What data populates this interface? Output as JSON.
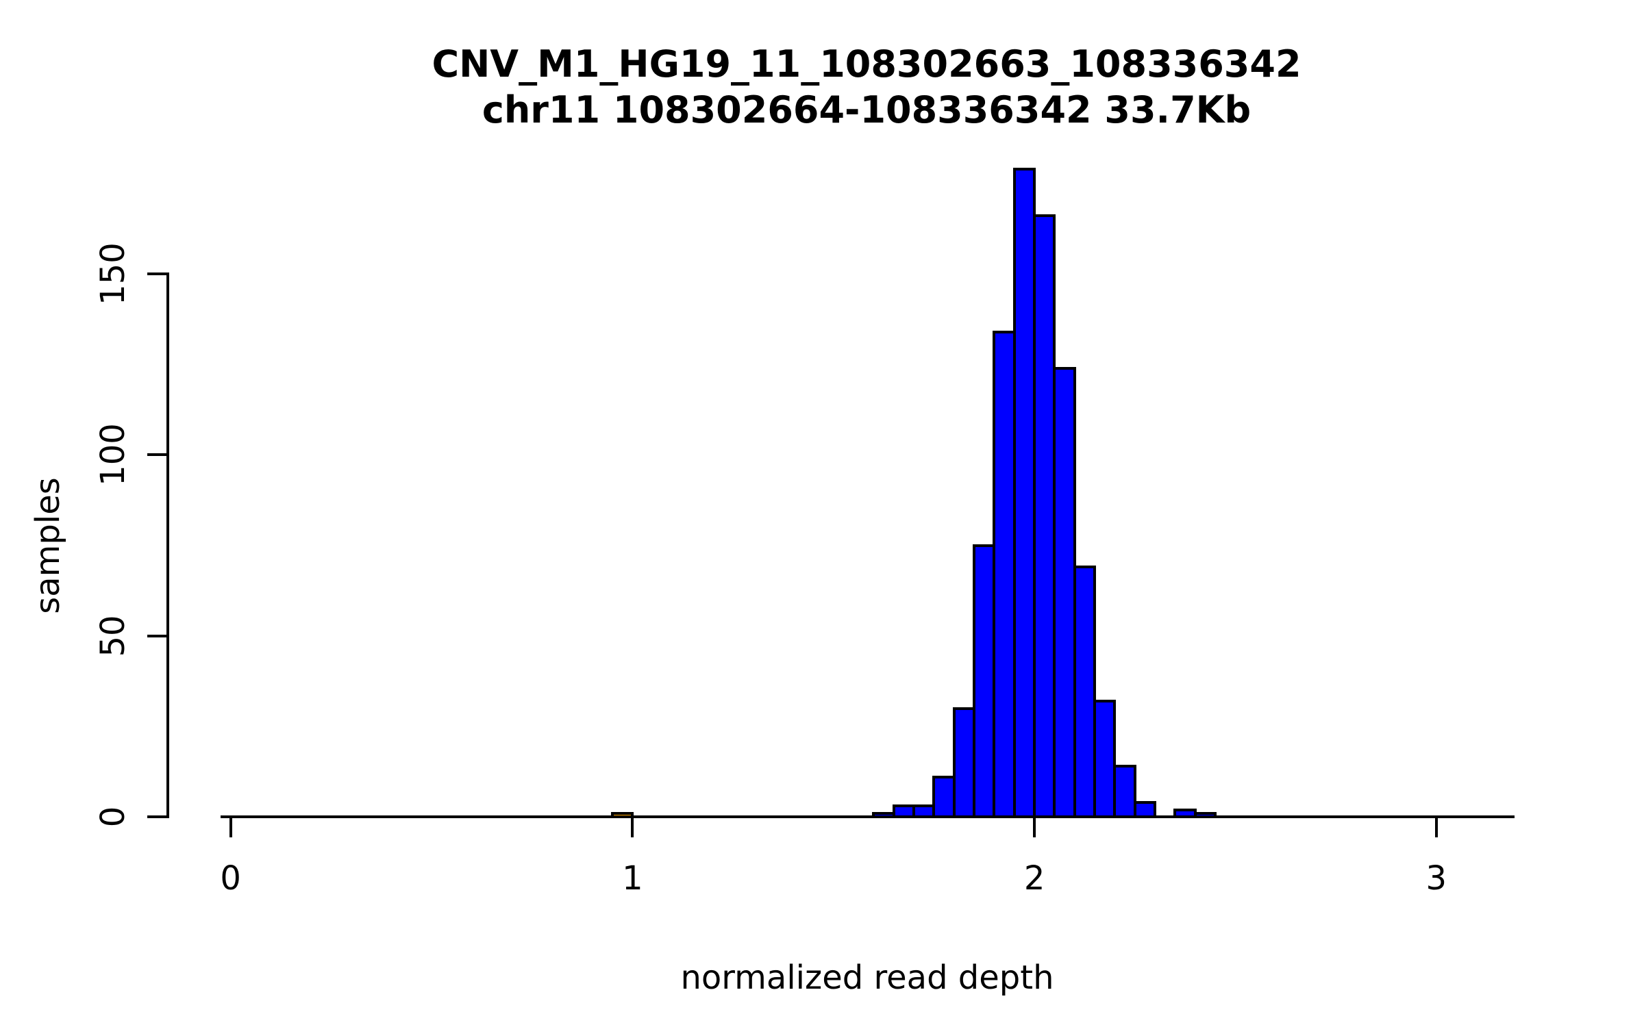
{
  "figure": {
    "background": "#ffffff",
    "text_color": "#000000"
  },
  "chart_data": {
    "type": "bar",
    "subtype": "histogram",
    "title": "CNV_M1_HG19_11_108302663_108336342",
    "subtitle": "chr11 108302664-108336342 33.7Kb",
    "xlabel": "normalized read depth",
    "ylabel": "samples",
    "grid": false,
    "legend": null,
    "bar_fill": "#0000FF",
    "bar_border": "#000000",
    "outlier_fill": "#FFA500",
    "bin_width": 0.05,
    "xlim": [
      -0.025,
      3.194
    ],
    "ylim": [
      0,
      180
    ],
    "x_ticks": [
      {
        "value": 0,
        "label": "0"
      },
      {
        "value": 1,
        "label": "1"
      },
      {
        "value": 2,
        "label": "2"
      },
      {
        "value": 3,
        "label": "3"
      }
    ],
    "y_ticks": [
      {
        "value": 0,
        "label": "0"
      },
      {
        "value": 50,
        "label": "50"
      },
      {
        "value": 100,
        "label": "100"
      },
      {
        "value": 150,
        "label": "150"
      }
    ],
    "bars": [
      {
        "bin_start": 0.95,
        "count": 1,
        "fill": "#FFA500"
      },
      {
        "bin_start": 1.6,
        "count": 1
      },
      {
        "bin_start": 1.65,
        "count": 3
      },
      {
        "bin_start": 1.7,
        "count": 3
      },
      {
        "bin_start": 1.75,
        "count": 11
      },
      {
        "bin_start": 1.8,
        "count": 30
      },
      {
        "bin_start": 1.85,
        "count": 75
      },
      {
        "bin_start": 1.9,
        "count": 134
      },
      {
        "bin_start": 1.95,
        "count": 179
      },
      {
        "bin_start": 2.0,
        "count": 166
      },
      {
        "bin_start": 2.05,
        "count": 124
      },
      {
        "bin_start": 2.1,
        "count": 69
      },
      {
        "bin_start": 2.15,
        "count": 32
      },
      {
        "bin_start": 2.2,
        "count": 14
      },
      {
        "bin_start": 2.25,
        "count": 4
      },
      {
        "bin_start": 2.35,
        "count": 2
      },
      {
        "bin_start": 2.4,
        "count": 1
      }
    ]
  }
}
